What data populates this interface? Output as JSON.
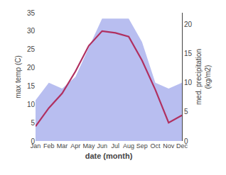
{
  "chart_data": {
    "type": "line",
    "xlabel": "date (month)",
    "ylabel": "max temp (C)",
    "y2label": "med. precipitation\n(kg/m2)",
    "categories": [
      "Jan",
      "Feb",
      "Mar",
      "Apr",
      "May",
      "Jun",
      "Jul",
      "Aug",
      "Sep",
      "Oct",
      "Nov",
      "Dec"
    ],
    "series": [
      {
        "type": "area",
        "axis": "y2",
        "color": "#b8bef0",
        "values": [
          7.0,
          10.0,
          9.0,
          11.0,
          16.0,
          21.0,
          21.0,
          21.0,
          17.0,
          10.0,
          9.0,
          10.0
        ]
      },
      {
        "type": "line",
        "color": "#b03060",
        "values": [
          4.0,
          9.0,
          13.0,
          19.0,
          26.0,
          30.0,
          29.5,
          28.5,
          22.0,
          14.0,
          5.0,
          7.0
        ]
      }
    ],
    "ylim": [
      0,
      35
    ],
    "yticks": [
      0,
      5,
      10,
      15,
      20,
      25,
      30,
      35
    ],
    "y2lim": [
      0,
      22
    ],
    "y2ticks": [
      0,
      5,
      10,
      15,
      20
    ],
    "grid": false
  }
}
